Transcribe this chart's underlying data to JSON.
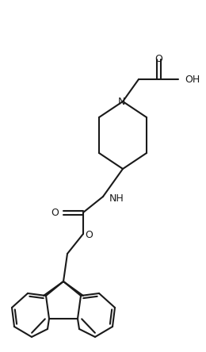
{
  "figsize": [
    2.6,
    4.44
  ],
  "dpi": 100,
  "bg_color": "#ffffff",
  "line_color": "#1a1a1a",
  "lw": 1.5,
  "font_size": 9,
  "xlim": [
    0,
    260
  ],
  "ylim": [
    0,
    444
  ]
}
